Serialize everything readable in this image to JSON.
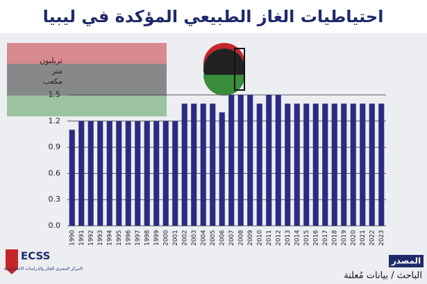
{
  "chart_data": {
    "type": "bar",
    "title": "احتياطيات الغاز الطبيعي المؤكدة في ليبيا",
    "y_label": [
      "تريليون",
      "متر",
      "مكعب"
    ],
    "categories": [
      "1990",
      "1991",
      "1992",
      "1993",
      "1994",
      "1995",
      "1996",
      "1997",
      "1998",
      "1999",
      "2000",
      "2001",
      "2002",
      "2003",
      "2004",
      "2005",
      "2006",
      "2007",
      "2008",
      "2009",
      "2010",
      "2011",
      "2012",
      "2013",
      "2014",
      "2015",
      "2016",
      "2017",
      "2018",
      "2019",
      "2020",
      "2021",
      "2022",
      "2023"
    ],
    "values": [
      1.1,
      1.2,
      1.2,
      1.2,
      1.2,
      1.2,
      1.2,
      1.2,
      1.2,
      1.2,
      1.2,
      1.2,
      1.4,
      1.4,
      1.4,
      1.4,
      1.3,
      1.5,
      1.5,
      1.5,
      1.4,
      1.5,
      1.5,
      1.4,
      1.4,
      1.4,
      1.4,
      1.4,
      1.4,
      1.4,
      1.4,
      1.4,
      1.4,
      1.4
    ],
    "color": "#2b2b82",
    "ylim": [
      0,
      1.5
    ],
    "yticks": [
      {
        "value": 0,
        "label": "0.0"
      },
      0.3,
      0.6,
      0.9,
      1.2,
      1.5
    ],
    "grid": true,
    "source_title": "المصدر",
    "source": "الباحث / بيانات مُعلنة",
    "logo": "ECSS",
    "logo_subtitle": "المركز المصري للفكر والدراسات الاستراتيجية"
  }
}
